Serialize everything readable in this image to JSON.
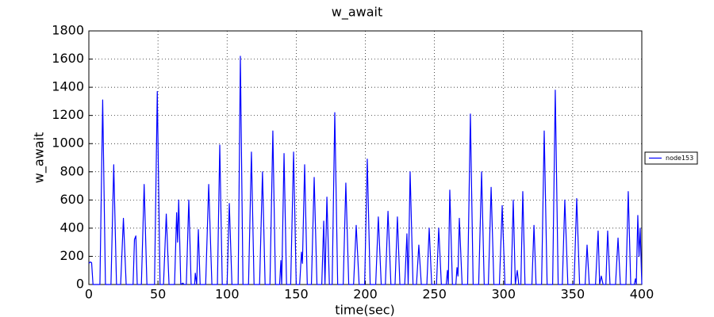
{
  "chart_data": {
    "type": "line",
    "title": "w_await",
    "x_label": "time(sec)",
    "y_label": "w_await",
    "xlim": [
      0,
      400
    ],
    "ylim": [
      0,
      1800
    ],
    "xticks": [
      0,
      50,
      100,
      150,
      200,
      250,
      300,
      350,
      400
    ],
    "yticks": [
      0,
      200,
      400,
      600,
      800,
      1000,
      1200,
      1400,
      1600,
      1800
    ],
    "grid": true,
    "legend": "right",
    "x": [
      0,
      1,
      2,
      3,
      8,
      10,
      12,
      16,
      18,
      20,
      23,
      25,
      27,
      32,
      33,
      34,
      35,
      38,
      40,
      42,
      47.5,
      49.5,
      51.5,
      54,
      56,
      58,
      62,
      63.5,
      64.2,
      65,
      66.5,
      68,
      69,
      70.5,
      72.3,
      74,
      76.5,
      77,
      78,
      79.2,
      80.5,
      84.5,
      86.7,
      89,
      93,
      94.7,
      96.5,
      100,
      101.6,
      103.5,
      108,
      109.6,
      111.5,
      115.5,
      117.6,
      119.5,
      123.5,
      125.6,
      127.5,
      131,
      133.1,
      135,
      138,
      138.9,
      139.5,
      141.2,
      143,
      146,
      148.1,
      150,
      152.5,
      153.8,
      154.5,
      156.1,
      158,
      161,
      163,
      165,
      168.5,
      169.9,
      170.8,
      172.2,
      174,
      176,
      177.9,
      180,
      184,
      185.9,
      188,
      191.5,
      193.4,
      195.5,
      199.5,
      201.4,
      203.5,
      207.5,
      209.4,
      211.5,
      214.5,
      216.4,
      218.5,
      221.5,
      223.2,
      225,
      228.5,
      230.1,
      231,
      232.4,
      234.5,
      237,
      238.7,
      240.5,
      244.5,
      246.2,
      248,
      251.5,
      253.1,
      255,
      258.5,
      259.4,
      260,
      261.1,
      263,
      265.5,
      266.3,
      267,
      268,
      270,
      274,
      276,
      278,
      282,
      284.1,
      286,
      289,
      291,
      293,
      297,
      299,
      301,
      305.5,
      307,
      308.5,
      309.9,
      311,
      312.5,
      313.9,
      315.5,
      320.5,
      322,
      323.5,
      327.5,
      329.4,
      331.5,
      335.5,
      337.4,
      339.5,
      342.5,
      344.3,
      346.5,
      351,
      352.9,
      355,
      359,
      360.4,
      362,
      366.5,
      368.4,
      369.5,
      370.7,
      372,
      374,
      375.3,
      377,
      381,
      382.8,
      384.5,
      388.5,
      390.2,
      392,
      394.5,
      395.4,
      396,
      397.1,
      398,
      398.8,
      400
    ],
    "series": [
      {
        "name": "node153",
        "color": "#0000ff",
        "values": [
          150,
          160,
          155,
          0,
          0,
          1310,
          0,
          0,
          850,
          0,
          0,
          470,
          0,
          0,
          320,
          345,
          0,
          0,
          710,
          0,
          0,
          1370,
          0,
          0,
          500,
          0,
          0,
          510,
          300,
          600,
          0,
          10,
          0,
          0,
          600,
          0,
          0,
          80,
          0,
          390,
          0,
          0,
          710,
          0,
          0,
          990,
          0,
          0,
          575,
          0,
          0,
          1620,
          0,
          0,
          940,
          0,
          0,
          800,
          0,
          0,
          1090,
          0,
          0,
          170,
          0,
          930,
          0,
          0,
          940,
          0,
          0,
          230,
          150,
          850,
          0,
          0,
          760,
          0,
          0,
          450,
          0,
          620,
          0,
          0,
          1220,
          0,
          0,
          720,
          0,
          0,
          420,
          0,
          0,
          890,
          0,
          0,
          480,
          0,
          0,
          520,
          0,
          0,
          480,
          0,
          0,
          360,
          0,
          800,
          0,
          0,
          280,
          0,
          0,
          400,
          0,
          0,
          400,
          0,
          0,
          100,
          0,
          670,
          0,
          0,
          120,
          60,
          470,
          0,
          0,
          1210,
          0,
          0,
          800,
          0,
          0,
          690,
          0,
          0,
          560,
          0,
          0,
          600,
          0,
          100,
          0,
          0,
          660,
          0,
          0,
          420,
          0,
          0,
          1090,
          0,
          0,
          1380,
          0,
          0,
          600,
          0,
          0,
          610,
          0,
          0,
          280,
          0,
          0,
          380,
          0,
          60,
          0,
          0,
          380,
          0,
          0,
          330,
          0,
          0,
          660,
          0,
          0,
          40,
          0,
          490,
          200,
          400,
          0
        ]
      }
    ]
  }
}
